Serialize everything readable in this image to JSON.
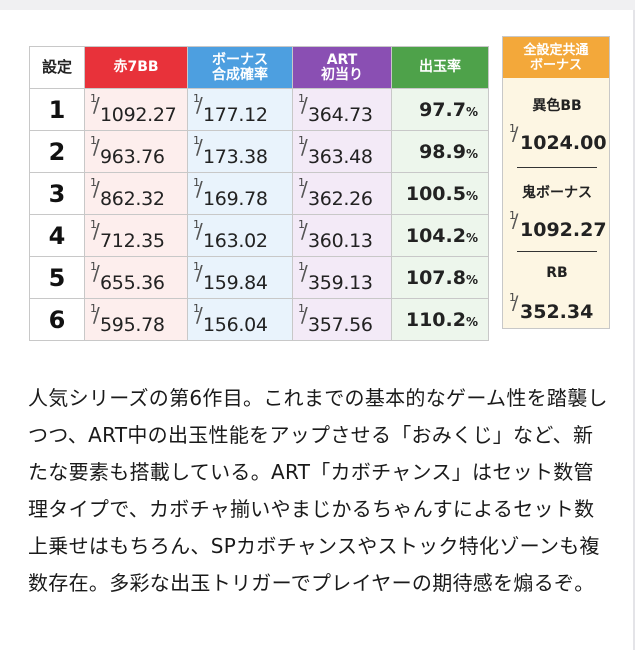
{
  "table": {
    "headers": {
      "setting": "設定",
      "red7bb": "赤7BB",
      "bonus_line1": "ボーナス",
      "bonus_line2": "合成確率",
      "art_line1": "ART",
      "art_line2": "初当り",
      "payout": "出玉率"
    },
    "fraction_numerator": "1",
    "rows": [
      {
        "setting": "1",
        "red7bb": "1092.27",
        "bonus": "177.12",
        "art": "364.73",
        "payout": "97.7",
        "pct": "%"
      },
      {
        "setting": "2",
        "red7bb": "963.76",
        "bonus": "173.38",
        "art": "363.48",
        "payout": "98.9",
        "pct": "%"
      },
      {
        "setting": "3",
        "red7bb": "862.32",
        "bonus": "169.78",
        "art": "362.26",
        "payout": "100.5",
        "pct": "%"
      },
      {
        "setting": "4",
        "red7bb": "712.35",
        "bonus": "163.02",
        "art": "360.13",
        "payout": "104.2",
        "pct": "%"
      },
      {
        "setting": "5",
        "red7bb": "655.36",
        "bonus": "159.84",
        "art": "359.13",
        "payout": "107.8",
        "pct": "%"
      },
      {
        "setting": "6",
        "red7bb": "595.78",
        "bonus": "156.04",
        "art": "357.56",
        "payout": "110.2",
        "pct": "%"
      }
    ]
  },
  "common": {
    "header_line1": "全設定共通",
    "header_line2": "ボーナス",
    "items": [
      {
        "label": "異色BB",
        "value": "1024.00"
      },
      {
        "label": "鬼ボーナス",
        "value": "1092.27"
      },
      {
        "label": "RB",
        "value": "352.34"
      }
    ]
  },
  "description": "人気シリーズの第6作目。これまでの基本的なゲーム性を踏襲しつつ、ART中の出玉性能をアップさせる「おみくじ」など、新たな要素も搭載している。ART「カボチャンス」はセット数管理タイプで、カボチャ揃いやまじかるちゃんすによるセット数上乗せはもちろん、SPカボチャンスやストック特化ゾーンも複数存在。多彩な出玉トリガーでプレイヤーの期待感を煽るぞ。",
  "colors": {
    "red": "#e8323a",
    "blue": "#4d9fe0",
    "purple": "#8a4fb3",
    "green": "#4ea24a",
    "orange": "#f3a83a"
  }
}
